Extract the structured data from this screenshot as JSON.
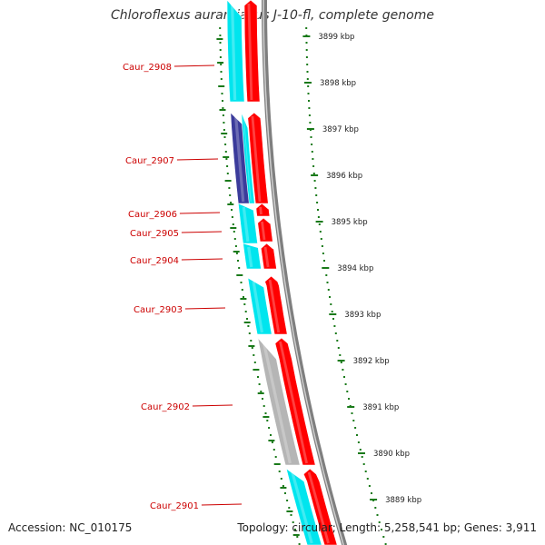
{
  "title": "Chloroflexus aurantiacus J-10-fl, complete genome",
  "accession": "Accession: NC_010175",
  "summary": "Topology: circular; Length: 5,258,541 bp; Genes: 3,911",
  "colors": {
    "cds_forward": "#ff0000",
    "cds_reverse": "#00e5ee",
    "cds_other": "#3b3b9b",
    "cds_grey": "#b5b5b5",
    "backbone": "#7f7f7f",
    "label": "#cc0000",
    "ticks": "#1a7a1a"
  },
  "scale_labels": [
    "3899 kbp",
    "3898 kbp",
    "3897 kbp",
    "3896 kbp",
    "3895 kbp",
    "3894 kbp",
    "3893 kbp",
    "3892 kbp",
    "3891 kbp",
    "3890 kbp",
    "3889 kbp"
  ],
  "gene_labels": [
    "Caur_2908",
    "Caur_2907",
    "Caur_2906",
    "Caur_2905",
    "Caur_2904",
    "Caur_2903",
    "Caur_2902",
    "Caur_2901"
  ]
}
